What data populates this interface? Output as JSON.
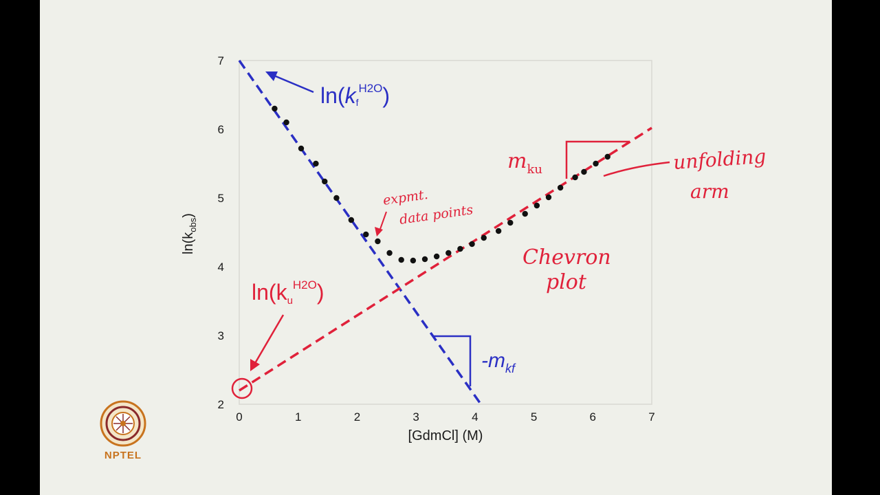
{
  "chart_data": {
    "type": "scatter",
    "xlabel": "[GdmCl] (M)",
    "ylabel_main": "ln(k",
    "ylabel_sub": "obs",
    "ylabel_end": ")",
    "xlim": [
      0,
      7
    ],
    "ylim": [
      2,
      7
    ],
    "x_ticks": [
      "0",
      "1",
      "2",
      "3",
      "4",
      "5",
      "6",
      "7"
    ],
    "y_ticks": [
      "2",
      "3",
      "4",
      "5",
      "6",
      "7"
    ],
    "series": [
      {
        "values_x": [
          0.6,
          0.8,
          1.05,
          1.3,
          1.45,
          1.65,
          1.9,
          2.15,
          2.35,
          2.55,
          2.75,
          2.95,
          3.15,
          3.35,
          3.55,
          3.75,
          3.95,
          4.15,
          4.4,
          4.6,
          4.85,
          5.05,
          5.25,
          5.45,
          5.7,
          5.85,
          6.05,
          6.25
        ],
        "values_y": [
          6.3,
          6.1,
          5.72,
          5.5,
          5.24,
          5.0,
          4.68,
          4.47,
          4.37,
          4.2,
          4.1,
          4.09,
          4.11,
          4.15,
          4.2,
          4.26,
          4.33,
          4.42,
          4.52,
          4.64,
          4.77,
          4.89,
          5.01,
          5.15,
          5.3,
          5.38,
          5.5,
          5.6
        ]
      }
    ],
    "folding_arm_line": {
      "x": [
        0,
        4.1
      ],
      "y": [
        7.0,
        2.0
      ]
    },
    "unfolding_arm_line": {
      "x": [
        0,
        7
      ],
      "y": [
        2.2,
        6.02
      ]
    }
  },
  "annotations": {
    "kf_label_main": "ln(",
    "kf_label_k": "k",
    "kf_label_sub": "f",
    "kf_label_sup": "H2O",
    "kf_label_end": ")",
    "ku_label_main": "ln(",
    "ku_label_k": "k",
    "ku_label_sub": "u",
    "ku_label_sup": "H2O",
    "ku_label_end": ")",
    "mkf_label_main": "-m",
    "mkf_label_sub": "kf",
    "mku_label_main": "m",
    "mku_label_sub": "ku",
    "data_points_line1": "expmt.",
    "data_points_line2": "data points",
    "unfolding_line1": "unfolding",
    "unfolding_line2": "arm",
    "chevron_line1": "Chevron",
    "chevron_line2": "plot"
  },
  "colors": {
    "blue": "#2a2fc4",
    "red": "#e0213a",
    "points": "#111111"
  },
  "logo": {
    "text": "NPTEL"
  }
}
